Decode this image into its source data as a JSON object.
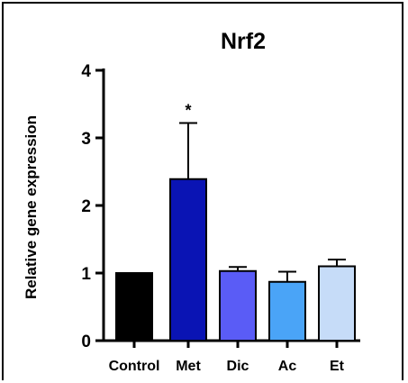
{
  "chart_data": {
    "type": "bar",
    "title": "Nrf2",
    "ylabel": "Relative gene expression",
    "xlabel": "",
    "ylim": [
      0,
      4
    ],
    "yticks": [
      "0",
      "1",
      "2",
      "3",
      "4"
    ],
    "categories": [
      "Control",
      "Met",
      "Dic",
      "Ac",
      "Et"
    ],
    "values": [
      1.0,
      2.39,
      1.03,
      0.87,
      1.1
    ],
    "errors": [
      0.0,
      0.83,
      0.06,
      0.15,
      0.1
    ],
    "colors": [
      "#000000",
      "#0a14b4",
      "#5a5cf6",
      "#4aa4f7",
      "#c6dcf8"
    ],
    "annotations": [
      "",
      "*",
      "",
      "",
      ""
    ],
    "grid": false,
    "legend": "none"
  }
}
